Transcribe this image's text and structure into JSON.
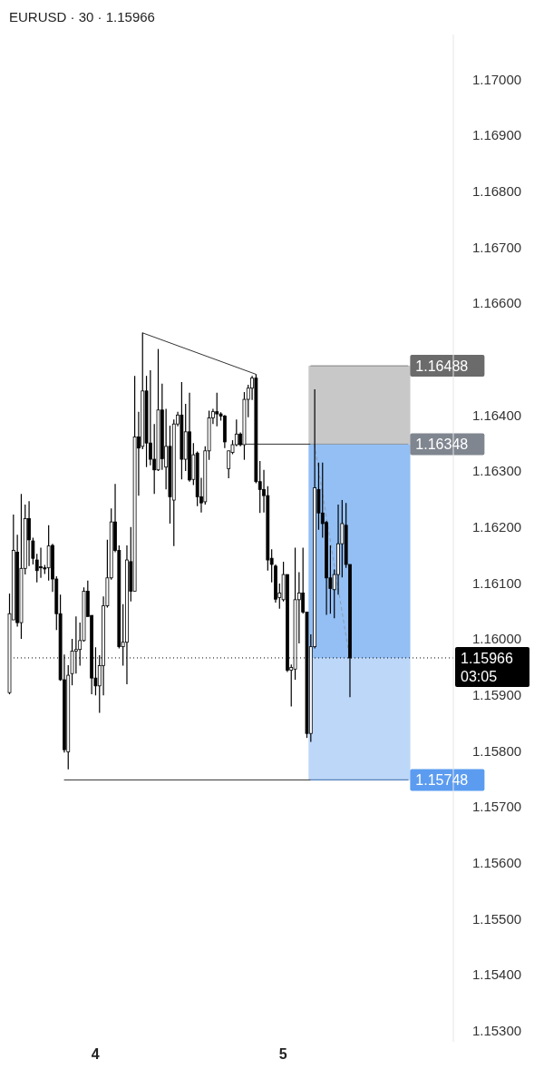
{
  "chart_data": {
    "type": "candlestick",
    "title": "EURUSD · 30 · 1.15966",
    "categories": [
      null,
      null,
      null,
      null,
      null,
      null,
      null,
      null,
      null,
      null,
      null,
      null,
      null,
      null,
      null,
      null,
      null,
      null,
      null,
      null,
      null,
      null,
      "4",
      null,
      null,
      null,
      null,
      null,
      null,
      null,
      null,
      null,
      null,
      null,
      null,
      null,
      null,
      null,
      null,
      null,
      null,
      null,
      null,
      null,
      null,
      null,
      null,
      null,
      null,
      null,
      null,
      null,
      null,
      null,
      null,
      null,
      null,
      null,
      null,
      null,
      null,
      null,
      null,
      null,
      null,
      null,
      null,
      null,
      null,
      null,
      "5",
      null,
      null,
      null,
      null,
      null,
      null,
      null,
      null,
      null,
      null,
      null,
      null,
      null,
      null,
      null,
      null,
      null,
      null,
      null,
      null,
      null,
      null,
      null,
      null,
      null,
      null,
      null,
      null,
      null,
      null,
      null,
      null,
      null,
      null,
      null,
      null,
      null,
      null,
      null,
      null,
      null,
      null,
      null
    ],
    "ohlc": [
      [
        1.15904,
        1.16081,
        1.15901,
        1.16045
      ],
      [
        1.16034,
        1.16222,
        1.16034,
        1.16158
      ],
      [
        1.16155,
        1.16186,
        1.16022,
        1.16029
      ],
      [
        1.16029,
        1.16259,
        1.16,
        1.16126
      ],
      [
        1.16126,
        1.1624,
        1.16115,
        1.16215
      ],
      [
        1.16215,
        1.16246,
        1.1613,
        1.16177
      ],
      [
        1.16175,
        1.16181,
        1.16133,
        1.16144
      ],
      [
        1.16141,
        1.16152,
        1.16101,
        1.16122
      ],
      [
        1.16129,
        1.16163,
        1.16109,
        1.16127
      ],
      [
        1.16127,
        1.16132,
        1.16116,
        1.16125
      ],
      [
        1.16127,
        1.16203,
        1.16104,
        1.16166
      ],
      [
        1.16167,
        1.1617,
        1.16084,
        1.16107
      ],
      [
        1.16107,
        1.16112,
        1.16016,
        1.16045
      ],
      [
        1.16045,
        1.16079,
        1.15925,
        1.15927
      ],
      [
        1.15927,
        1.15972,
        1.15797,
        1.15802
      ],
      [
        1.15798,
        1.15953,
        1.15767,
        1.15935
      ],
      [
        1.15938,
        1.16,
        1.15917,
        1.15978
      ],
      [
        1.15978,
        1.1604,
        1.15938,
        1.15981
      ],
      [
        1.15981,
        1.16029,
        1.15952,
        1.15997
      ],
      [
        1.15997,
        1.16092,
        1.15995,
        1.16085
      ],
      [
        1.16085,
        1.16104,
        1.1604,
        1.1604
      ],
      [
        1.16042,
        1.16042,
        1.15901,
        1.1593
      ],
      [
        1.1593,
        1.15985,
        1.15899,
        1.15916
      ],
      [
        1.15916,
        1.15971,
        1.15868,
        1.15952
      ],
      [
        1.15952,
        1.16076,
        1.15899,
        1.16059
      ],
      [
        1.16059,
        1.16177,
        1.16056,
        1.16109
      ],
      [
        1.16109,
        1.16233,
        1.16106,
        1.16209
      ],
      [
        1.16209,
        1.16277,
        1.16155,
        1.16158
      ],
      [
        1.16158,
        1.16167,
        1.15983,
        1.15986
      ],
      [
        1.15986,
        1.16062,
        1.15952,
        1.15994
      ],
      [
        1.15994,
        1.16167,
        1.15919,
        1.16141
      ],
      [
        1.16138,
        1.162,
        1.16067,
        1.16085
      ],
      [
        1.16085,
        1.1647,
        1.16085,
        1.16361
      ],
      [
        1.16361,
        1.16406,
        1.16256,
        1.16341
      ],
      [
        1.16344,
        1.16547,
        1.16339,
        1.16443
      ],
      [
        1.16443,
        1.1647,
        1.16307,
        1.1635
      ],
      [
        1.1635,
        1.1648,
        1.1631,
        1.16321
      ],
      [
        1.16321,
        1.16384,
        1.16259,
        1.16302
      ],
      [
        1.16302,
        1.16518,
        1.163,
        1.16409
      ],
      [
        1.16409,
        1.16456,
        1.16302,
        1.16322
      ],
      [
        1.16307,
        1.16411,
        1.16267,
        1.16344
      ],
      [
        1.16344,
        1.16381,
        1.16206,
        1.16254
      ],
      [
        1.16248,
        1.16392,
        1.16166,
        1.16384
      ],
      [
        1.16384,
        1.16406,
        1.1638,
        1.164
      ],
      [
        1.164,
        1.16459,
        1.16285,
        1.16321
      ],
      [
        1.16321,
        1.1642,
        1.163,
        1.1637
      ],
      [
        1.1637,
        1.1644,
        1.16281,
        1.16284
      ],
      [
        1.16285,
        1.1635,
        1.16275,
        1.16329
      ],
      [
        1.16332,
        1.16335,
        1.16237,
        1.16254
      ],
      [
        1.16254,
        1.16288,
        1.16226,
        1.16243
      ],
      [
        1.16245,
        1.16344,
        1.1624,
        1.16336
      ],
      [
        1.16336,
        1.16408,
        1.1632,
        1.16395
      ],
      [
        1.16395,
        1.16411,
        1.16384,
        1.16406
      ],
      [
        1.16406,
        1.1644,
        1.1638,
        1.16402
      ],
      [
        1.16402,
        1.16405,
        1.1639,
        1.16398
      ],
      [
        1.16398,
        1.164,
        1.16341,
        1.16352
      ],
      [
        1.16304,
        1.16336,
        1.16287,
        1.16336
      ],
      [
        1.16333,
        1.16355,
        1.1633,
        1.16347
      ],
      [
        1.16347,
        1.16392,
        1.16344,
        1.16366
      ],
      [
        1.16366,
        1.16369,
        1.16344,
        1.16347
      ],
      [
        1.16347,
        1.16441,
        1.1632,
        1.16428
      ],
      [
        1.16428,
        1.16454,
        1.16396,
        1.16448
      ],
      [
        1.16448,
        1.1647,
        1.16427,
        1.16466
      ],
      [
        1.16466,
        1.16473,
        1.16278,
        1.16281
      ],
      [
        1.16281,
        1.16318,
        1.16225,
        1.16267
      ],
      [
        1.16267,
        1.16302,
        1.16226,
        1.16256
      ],
      [
        1.16256,
        1.16273,
        1.16122,
        1.16141
      ],
      [
        1.16144,
        1.1616,
        1.16101,
        1.16133
      ],
      [
        1.1613,
        1.16133,
        1.16065,
        1.16071
      ],
      [
        1.16074,
        1.16099,
        1.16054,
        1.16082
      ],
      [
        1.1607,
        1.16138,
        1.16067,
        1.16115
      ],
      [
        1.16115,
        1.16115,
        1.15941,
        1.15944
      ],
      [
        1.15944,
        1.15954,
        1.15879,
        1.15949
      ],
      [
        1.15946,
        1.16163,
        1.15927,
        1.1607
      ],
      [
        1.1607,
        1.16119,
        1.15992,
        1.16082
      ],
      [
        1.16082,
        1.16163,
        1.16045,
        1.16048
      ],
      [
        1.16048,
        1.16048,
        1.15823,
        1.15831
      ],
      [
        1.15831,
        1.16008,
        1.15816,
        1.15986
      ],
      [
        1.15986,
        1.16446,
        1.15983,
        1.1627
      ],
      [
        1.16267,
        1.16315,
        1.16195,
        1.16225
      ],
      [
        1.16225,
        1.16315,
        1.16181,
        1.16206
      ],
      [
        1.16208,
        1.16211,
        1.16043,
        1.16109
      ],
      [
        1.16109,
        1.16167,
        1.16045,
        1.1609
      ],
      [
        1.16088,
        1.16124,
        1.16037,
        1.16115
      ],
      [
        1.16115,
        1.1624,
        1.16079,
        1.1617
      ],
      [
        1.1617,
        1.16248,
        1.1611,
        1.16206
      ],
      [
        1.16203,
        1.16243,
        1.16127,
        1.16133
      ],
      [
        1.16133,
        1.16133,
        1.15896,
        1.15966
      ],
      null,
      null,
      null,
      null,
      null,
      null,
      null,
      null,
      null,
      null,
      null,
      null,
      null,
      null,
      null,
      null,
      null,
      null,
      null,
      null,
      null,
      null,
      null,
      null,
      null,
      null
    ],
    "series": [
      {
        "type": "line",
        "color": "#333333",
        "line_style": "solid",
        "values": [
          null,
          null,
          null,
          null,
          null,
          null,
          null,
          null,
          null,
          null,
          null,
          null,
          null,
          null,
          null,
          null,
          null,
          null,
          null,
          null,
          null,
          null,
          null,
          null,
          null,
          null,
          null,
          null,
          null,
          null,
          null,
          null,
          null,
          null,
          1.16547,
          null,
          null,
          null,
          null,
          null,
          null,
          null,
          null,
          null,
          null,
          null,
          null,
          null,
          null,
          null,
          null,
          null,
          null,
          null,
          null,
          null,
          null,
          null,
          null,
          null,
          null,
          null,
          null,
          1.16473,
          null,
          null,
          null,
          null,
          null,
          null,
          null,
          null,
          null,
          null,
          null,
          null,
          null,
          null,
          null,
          null,
          null,
          null,
          null,
          null,
          null,
          null,
          null,
          null,
          null,
          null,
          null,
          null,
          null,
          null,
          null,
          null,
          null,
          null,
          null,
          null,
          null,
          null,
          null,
          null,
          null,
          null,
          null,
          null,
          null,
          null,
          null,
          null,
          null,
          null
        ]
      },
      {
        "type": "line",
        "color": "#333333",
        "line_style": "solid",
        "values": [
          null,
          null,
          null,
          null,
          null,
          null,
          null,
          null,
          null,
          null,
          null,
          null,
          null,
          null,
          1.15748,
          null,
          null,
          null,
          null,
          null,
          null,
          null,
          null,
          null,
          null,
          null,
          null,
          null,
          null,
          null,
          null,
          null,
          null,
          null,
          null,
          null,
          null,
          null,
          null,
          null,
          null,
          null,
          null,
          null,
          null,
          null,
          null,
          null,
          null,
          null,
          null,
          null,
          null,
          null,
          null,
          null,
          null,
          null,
          null,
          null,
          null,
          null,
          null,
          null,
          null,
          null,
          null,
          null,
          null,
          null,
          null,
          null,
          null,
          null,
          null,
          null,
          null,
          null,
          null,
          null,
          null,
          null,
          null,
          null,
          null,
          null,
          null,
          null,
          null,
          null,
          null,
          null,
          null,
          null,
          null,
          null,
          null,
          null,
          null,
          null,
          null,
          null,
          1.15748,
          null,
          null,
          null,
          null,
          null,
          null,
          null,
          null,
          null,
          null,
          null
        ]
      },
      {
        "type": "line",
        "color": "#333333",
        "line_style": "solid",
        "values": [
          null,
          null,
          null,
          null,
          null,
          null,
          null,
          null,
          null,
          null,
          null,
          null,
          null,
          null,
          null,
          null,
          null,
          null,
          null,
          null,
          null,
          null,
          null,
          null,
          null,
          null,
          null,
          null,
          null,
          null,
          null,
          null,
          null,
          null,
          null,
          null,
          null,
          null,
          null,
          null,
          null,
          null,
          null,
          null,
          null,
          null,
          null,
          null,
          null,
          null,
          null,
          null,
          null,
          null,
          null,
          null,
          null,
          null,
          1.16348,
          null,
          null,
          null,
          null,
          null,
          null,
          null,
          null,
          null,
          null,
          null,
          null,
          null,
          null,
          null,
          null,
          null,
          null,
          1.16348,
          null,
          null,
          null,
          null,
          null,
          null,
          null,
          null,
          null,
          null,
          null,
          null,
          null,
          null,
          null,
          null,
          null,
          null,
          null,
          null,
          null,
          null,
          null,
          null,
          null,
          null,
          null,
          null,
          null,
          null,
          null,
          null,
          null,
          null,
          null,
          null
        ]
      },
      {
        "type": "line",
        "color": "#8a9bb0",
        "line_style": "dashed",
        "values": [
          null,
          null,
          null,
          null,
          null,
          null,
          null,
          null,
          null,
          null,
          null,
          null,
          null,
          null,
          null,
          null,
          null,
          null,
          null,
          null,
          null,
          null,
          null,
          null,
          null,
          null,
          null,
          null,
          null,
          null,
          null,
          null,
          null,
          null,
          null,
          null,
          null,
          null,
          null,
          null,
          null,
          null,
          null,
          null,
          null,
          null,
          null,
          null,
          null,
          null,
          null,
          null,
          null,
          null,
          null,
          null,
          null,
          null,
          null,
          null,
          null,
          null,
          null,
          null,
          null,
          null,
          null,
          null,
          null,
          null,
          null,
          null,
          null,
          null,
          null,
          null,
          null,
          null,
          1.16348,
          null,
          null,
          null,
          null,
          null,
          null,
          null,
          null,
          1.15966,
          null,
          null,
          null,
          null,
          null,
          null,
          null,
          null,
          null,
          null,
          null,
          null,
          null,
          null,
          null,
          null,
          null,
          null,
          null,
          null,
          null,
          null,
          null,
          null,
          null,
          null
        ]
      }
    ],
    "ylim": [
      1.1528,
      1.1708
    ],
    "yticks": [
      {
        "value": 1.153,
        "label": "1.15300"
      },
      {
        "value": 1.154,
        "label": "1.15400"
      },
      {
        "value": 1.155,
        "label": "1.15500"
      },
      {
        "value": 1.156,
        "label": "1.15600"
      },
      {
        "value": 1.157,
        "label": "1.15700"
      },
      {
        "value": 1.158,
        "label": "1.15800"
      },
      {
        "value": 1.159,
        "label": "1.15900"
      },
      {
        "value": 1.16,
        "label": "1.16000"
      },
      {
        "value": 1.161,
        "label": "1.16100"
      },
      {
        "value": 1.162,
        "label": "1.16200"
      },
      {
        "value": 1.163,
        "label": "1.16300"
      },
      {
        "value": 1.164,
        "label": "1.16400"
      },
      {
        "value": 1.166,
        "label": "1.16600"
      },
      {
        "value": 1.167,
        "label": "1.16700"
      },
      {
        "value": 1.168,
        "label": "1.16800"
      },
      {
        "value": 1.169,
        "label": "1.16900"
      },
      {
        "value": 1.17,
        "label": "1.17000"
      }
    ],
    "bands": [
      {
        "axis": "y",
        "from": 1.16348,
        "to": 1.16488,
        "color": "#c8c8c8"
      },
      {
        "axis": "y",
        "from": 1.15966,
        "to": 1.16348,
        "color": "#93bff5"
      },
      {
        "axis": "y",
        "from": 1.15748,
        "to": 1.15966,
        "color": "#bdd7f8"
      }
    ],
    "ref_lines": [
      {
        "axis": "y",
        "value": 1.16488,
        "label": "1.16488",
        "color": "#6b6b6b"
      },
      {
        "axis": "y",
        "value": 1.16348,
        "label": "1.16348",
        "color": "#80868f"
      },
      {
        "axis": "y",
        "value": 1.15966,
        "label": "1.15966",
        "color": "#000000",
        "line_style": "dotted"
      },
      {
        "axis": "y",
        "value": 1.15748,
        "label": "1.15748",
        "color": "#5b9cf0"
      }
    ],
    "annotations": [
      "03:05"
    ]
  }
}
